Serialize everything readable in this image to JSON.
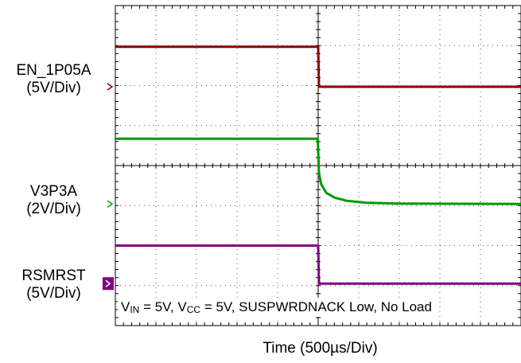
{
  "chart_data": {
    "type": "line",
    "xlabel": "Time (500µs/Div)",
    "divisions": {
      "x": 10,
      "y": 8
    },
    "trigger_div": 5,
    "series": [
      {
        "name": "EN_1P05A",
        "label_line1": "EN_1P05A",
        "label_line2": "(5V/Div)",
        "color": "#8b0000",
        "x_div": [
          0,
          5.0,
          5.02,
          10
        ],
        "y_div": [
          2.97,
          2.97,
          1.97,
          1.97
        ],
        "marker_div": 1.97
      },
      {
        "name": "V3P3A",
        "label_line1": "V3P3A",
        "label_line2": "(2V/Div)",
        "color": "#009900",
        "x_div": [
          0,
          4.99,
          5.02,
          5.08,
          5.2,
          5.4,
          5.7,
          6.2,
          7.0,
          10
        ],
        "y_div": [
          0.67,
          0.67,
          -0.2,
          -0.48,
          -0.68,
          -0.8,
          -0.88,
          -0.93,
          -0.95,
          -0.96
        ],
        "marker_div": -0.96
      },
      {
        "name": "RSMRST",
        "label_line1": "RSMRST",
        "label_line2": "(5V/Div)",
        "color": "#800080",
        "x_div": [
          0,
          5.0,
          5.02,
          10
        ],
        "y_div": [
          -2.0,
          -2.0,
          -2.95,
          -2.95
        ],
        "marker_div": -2.95
      }
    ]
  },
  "conditions": {
    "vin_label": "V",
    "vin_sub": "IN",
    "vin_value": " = 5V, ",
    "vcc_label": "V",
    "vcc_sub": "CC",
    "rest": " = 5V, SUSPWRDNACK Low, No Load"
  }
}
